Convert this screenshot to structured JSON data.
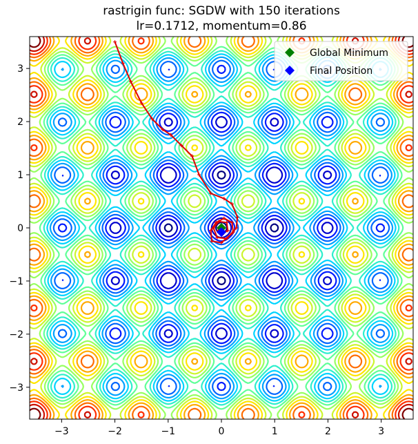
{
  "chart_data": {
    "type": "contour",
    "title": "rastrigin func: SGDW with 150 iterations",
    "subtitle": "lr=0.1712, momentum=0.86",
    "function": "rastrigin",
    "xlim": [
      -3.6,
      3.6
    ],
    "ylim": [
      -3.6,
      3.6
    ],
    "xticks": [
      -3,
      -2,
      -1,
      0,
      1,
      2,
      3
    ],
    "yticks": [
      -3,
      -2,
      -1,
      0,
      1,
      2,
      3
    ],
    "xtick_labels": [
      "−3",
      "−2",
      "−1",
      "0",
      "1",
      "2",
      "3"
    ],
    "ytick_labels": [
      "−3",
      "−2",
      "−1",
      "0",
      "1",
      "2",
      "3"
    ],
    "grid": false,
    "legend_position": "top-right",
    "contour_levels": [
      2,
      6,
      10,
      14,
      18,
      22,
      26,
      30,
      34,
      38,
      42,
      46,
      50,
      54,
      58,
      62
    ],
    "colormap": [
      "#00007f",
      "#0000ff",
      "#0080ff",
      "#00d4ff",
      "#4dffaa",
      "#aaff4d",
      "#ffe600",
      "#ff8000",
      "#ff1a00",
      "#7f0000"
    ],
    "path_color": "#e00000",
    "path": [
      [
        -2.0,
        3.5
      ],
      [
        -1.85,
        3.1
      ],
      [
        -1.7,
        2.75
      ],
      [
        -1.5,
        2.35
      ],
      [
        -1.3,
        2.05
      ],
      [
        -1.1,
        1.85
      ],
      [
        -0.95,
        1.75
      ],
      [
        -0.75,
        1.55
      ],
      [
        -0.55,
        1.35
      ],
      [
        -0.42,
        1.0
      ],
      [
        -0.2,
        0.65
      ],
      [
        0.05,
        0.55
      ],
      [
        0.2,
        0.45
      ],
      [
        0.3,
        0.2
      ],
      [
        0.28,
        0.0
      ],
      [
        0.2,
        -0.1
      ],
      [
        0.0,
        -0.28
      ],
      [
        -0.18,
        -0.25
      ],
      [
        -0.2,
        -0.05
      ],
      [
        -0.1,
        0.1
      ],
      [
        0.05,
        0.18
      ],
      [
        0.2,
        0.1
      ],
      [
        0.22,
        -0.08
      ],
      [
        0.1,
        -0.2
      ],
      [
        -0.08,
        -0.18
      ],
      [
        -0.15,
        0.0
      ],
      [
        -0.05,
        0.12
      ],
      [
        0.1,
        0.1
      ],
      [
        0.12,
        -0.05
      ],
      [
        0.02,
        -0.12
      ],
      [
        -0.06,
        -0.05
      ],
      [
        0.0,
        0.02
      ],
      [
        0.0,
        -0.08
      ]
    ],
    "series": [
      {
        "name": "Global Minimum",
        "x": 0.0,
        "y": 0.0,
        "color": "#008000",
        "marker": "diamond"
      },
      {
        "name": "Final Position",
        "x": 0.0,
        "y": -0.08,
        "color": "#0000ff",
        "marker": "diamond"
      }
    ]
  }
}
